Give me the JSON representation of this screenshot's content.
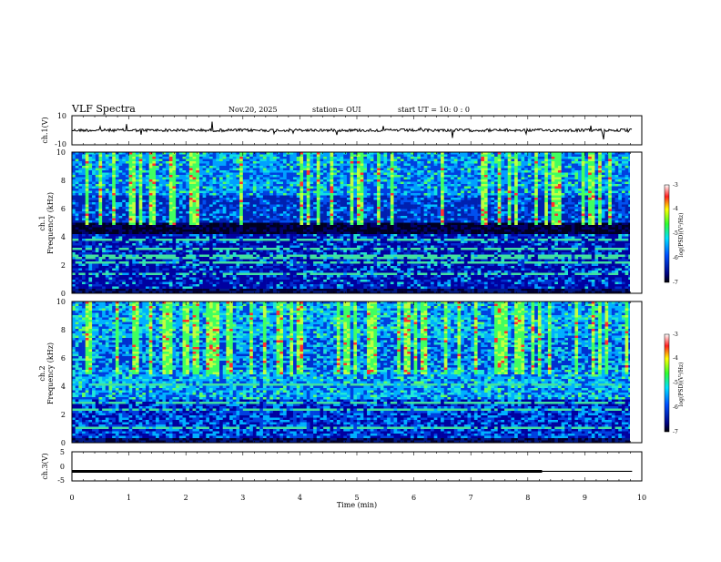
{
  "header": {
    "title": "VLF Spectra",
    "date": "Nov.20, 2025",
    "station": "station= OUI",
    "start_ut": "start UT =   10: 0  : 0"
  },
  "chart_data": [
    {
      "type": "line",
      "name": "ch1-waveform",
      "ylabel": "ch.1(V)",
      "ylim": [
        -10,
        10
      ],
      "y_tick_labels": [
        "10",
        "-10"
      ],
      "baseline_value": 0,
      "xlim": [
        0,
        10
      ]
    },
    {
      "type": "heatmap",
      "name": "ch1-spectrogram",
      "ylabel_channel": "ch.1",
      "ylabel": "Frequency (kHz)",
      "ylim": [
        0,
        10
      ],
      "y_tick_labels": [
        "0",
        "2",
        "4",
        "6",
        "8",
        "10"
      ],
      "xlim": [
        0,
        10
      ],
      "colorbar": {
        "label": "log(PSD)(V²/Hz)",
        "range": [
          -7,
          -3
        ],
        "tick_labels": [
          "-3",
          "-4",
          "-5",
          "-6",
          "-7"
        ]
      }
    },
    {
      "type": "heatmap",
      "name": "ch2-spectrogram",
      "ylabel_channel": "ch.2",
      "ylabel": "Frequency (kHz)",
      "ylim": [
        0,
        10
      ],
      "y_tick_labels": [
        "0",
        "2",
        "4",
        "6",
        "8",
        "10"
      ],
      "xlim": [
        0,
        10
      ],
      "colorbar": {
        "label": "log(PSD)(V²/Hz)",
        "range": [
          -7,
          -3
        ],
        "tick_labels": [
          "-3",
          "-4",
          "-5",
          "-6",
          "-7"
        ]
      }
    },
    {
      "type": "line",
      "name": "ch3-trace",
      "ylabel": "ch.3(V)",
      "ylim": [
        -5,
        5
      ],
      "y_tick_labels": [
        "5",
        "0",
        "-5"
      ],
      "series": [
        {
          "name": "thick",
          "x": [
            0,
            8.25
          ],
          "y": [
            -1.7,
            -1.7
          ]
        },
        {
          "name": "thin",
          "x": [
            8.25,
            9.83
          ],
          "y": [
            -1.7,
            -1.7
          ]
        }
      ],
      "xlim": [
        0,
        10
      ],
      "xlabel": "Time (min)",
      "x_tick_labels": [
        "0",
        "1",
        "2",
        "3",
        "4",
        "5",
        "6",
        "7",
        "8",
        "9",
        "10"
      ]
    }
  ],
  "colors": {
    "low": "#00007a",
    "mid": "#00e0e0",
    "high_green": "#40ff40",
    "peak": "#ff2020"
  }
}
